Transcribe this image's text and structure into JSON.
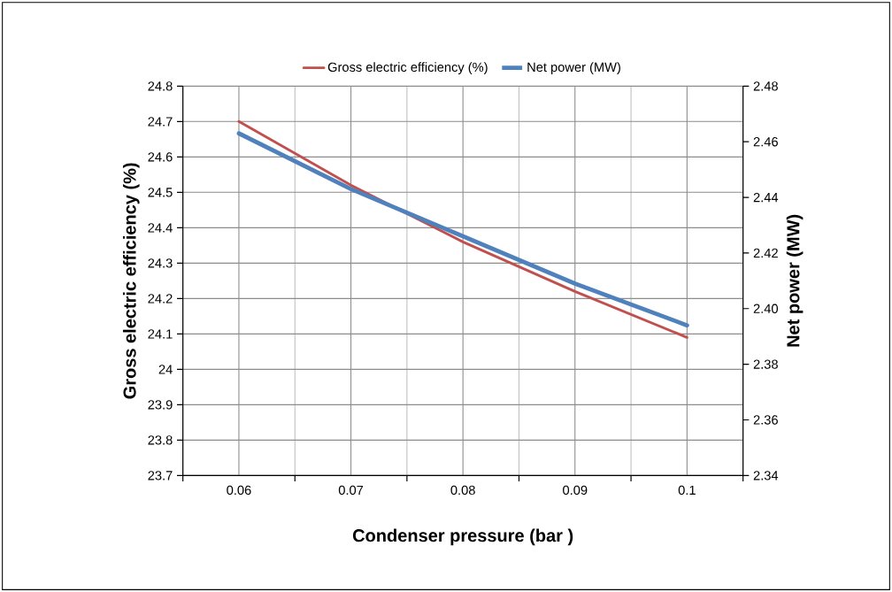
{
  "chart_data": {
    "type": "line",
    "xlabel": "Condenser pressure  (bar )",
    "ylabel": "Gross  electric efficiency  (%)",
    "y2label": "Net power (MW)",
    "categories": [
      "0.06",
      "0.07",
      "0.08",
      "0.09",
      "0.1"
    ],
    "series": [
      {
        "name": "Gross electric efficiency  (%)",
        "color": "#c0504d",
        "values": [
          24.7,
          24.52,
          24.36,
          24.22,
          24.09
        ]
      },
      {
        "name": "Net power  (MW)",
        "color": "#4f81bd",
        "axis": "y2",
        "values": [
          2.463,
          2.443,
          2.426,
          2.409,
          2.394
        ]
      }
    ],
    "ylim": [
      23.7,
      24.8
    ],
    "yticks": [
      23.7,
      23.8,
      23.9,
      24,
      24.1,
      24.2,
      24.3,
      24.4,
      24.5,
      24.6,
      24.7,
      24.8
    ],
    "y2lim": [
      2.34,
      2.48
    ],
    "y2ticks": [
      2.34,
      2.36,
      2.38,
      {
        "value": 2.4,
        "label": "2.40"
      },
      2.42,
      2.44,
      2.46,
      2.48
    ],
    "grid": true,
    "legend": "top",
    "marker": "none",
    "line_style": "solid"
  }
}
